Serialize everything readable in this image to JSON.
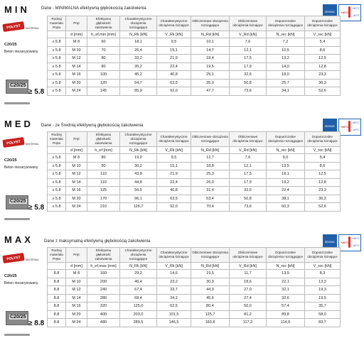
{
  "sections": [
    {
      "id": "min",
      "title": "MIN",
      "desc": "Dane - MINIMALNA efektywną głębokością zakotwienia",
      "badge": {
        "text": "SEISMIC",
        "t1": "+40°C",
        "t2": "+50°C",
        "t3": "-40°C"
      },
      "headers": [
        "Rodzaj materiału Pręta",
        "Pręt",
        "Efektywna głębokość zakotwienia",
        "Charakterystyczne obciążenia rozciągające",
        "Charakterystyczne obciążenia ścinające",
        "Obliczeniowe obciążenia rozciągające",
        "Obliczeniowe obciążenia ścinające",
        "Dopuszczalne obciążenia rozciągające",
        "Dopuszczalne obciążenia ścinające"
      ],
      "units": [
        "",
        "d [mm]",
        "h_ef,min [mm]",
        "N_Rk [kN]",
        "V_Rk [kN]",
        "N_Rd [kN]",
        "V_Rd [kN]",
        "N_rec [kN]",
        "V_rec [kN]"
      ],
      "concrete": "C20/25",
      "concrete_desc": "Beton niezarysowany",
      "grade": "≥ 5.8",
      "rows": [
        [
          "≥ 5.8",
          "M 8",
          "60",
          "18,1",
          "9,5",
          "10,1",
          "7,6",
          "7,2",
          "5,4"
        ],
        [
          "≥ 5.8",
          "M 10",
          "70",
          "26,4",
          "15,1",
          "14,7",
          "12,1",
          "10,5",
          "8,6"
        ],
        [
          "≥ 5.8",
          "M 12",
          "80",
          "33,2",
          "21,9",
          "18,4",
          "17,5",
          "13,2",
          "12,5"
        ],
        [
          "≥ 5.8",
          "M 14",
          "80",
          "35,2",
          "22,4",
          "19,5",
          "17,9",
          "14,0",
          "12,8"
        ],
        [
          "≥ 5.8",
          "M 16",
          "100",
          "45,2",
          "40,8",
          "25,1",
          "32,6",
          "18,0",
          "23,3"
        ],
        [
          "≥ 5.8",
          "M 20",
          "120",
          "64,7",
          "63,5",
          "35,9",
          "50,8",
          "25,7",
          "36,3"
        ],
        [
          "≥ 5.8",
          "M 24",
          "145",
          "85,9",
          "92,0",
          "47,7",
          "73,6",
          "34,1",
          "52,6"
        ]
      ]
    },
    {
      "id": "med",
      "title": "MED",
      "desc": "Dane - ze Średnią efektywną głębokością zakotwienia",
      "badge": {
        "text": "SEISMIC",
        "t1": "+40°C",
        "t2": "+50°C",
        "t3": "-40°C"
      },
      "headers": [
        "Rodzaj materiału Pręta",
        "Pręt",
        "Efektywna głębokość zakotwienia",
        "Charakterystyczne obciążenia rozciągające",
        "Charakterystyczne obciążenia ścinające",
        "Obliczeniowe obciążenia rozciągające",
        "Obliczeniowe obciążenia ścinające",
        "Dopuszczalne obciążenia rozciągające",
        "Dopuszczalne obciążenia ścinające"
      ],
      "units": [
        "",
        "d [mm]",
        "h_ef [mm]",
        "N_Rk [kN]",
        "V_Rk [kN]",
        "N_Rd [kN]",
        "V_Rd [kN]",
        "N_rec [kN]",
        "V_rec [kN]"
      ],
      "concrete": "C20/25",
      "concrete_desc": "Beton niezarysowany",
      "grade": "≥ 5.8",
      "rows": [
        [
          "≥ 5.8",
          "M 8",
          "80",
          "19,0",
          "9,5",
          "12,7",
          "7,6",
          "9,0",
          "5,4"
        ],
        [
          "≥ 5.8",
          "M 10",
          "90",
          "30,2",
          "15,1",
          "18,8",
          "12,1",
          "13,5",
          "8,6"
        ],
        [
          "≥ 5.8",
          "M 12",
          "110",
          "43,8",
          "21,9",
          "25,3",
          "17,5",
          "18,1",
          "12,5"
        ],
        [
          "≥ 5.8",
          "M 14",
          "110",
          "44,8",
          "22,4",
          "26,9",
          "17,9",
          "19,2",
          "12,8"
        ],
        [
          "≥ 5.8",
          "M 16",
          "125",
          "56,5",
          "40,8",
          "31,4",
          "32,6",
          "22,4",
          "23,3"
        ],
        [
          "≥ 5.8",
          "M 20",
          "170",
          "96,1",
          "63,5",
          "53,4",
          "50,8",
          "38,1",
          "36,3"
        ],
        [
          "≥ 5.8",
          "M 24",
          "210",
          "126,7",
          "92,0",
          "70,4",
          "73,6",
          "60,3",
          "52,6"
        ]
      ]
    },
    {
      "id": "max",
      "title": "MAX",
      "desc": "Dane z maksymalną efektywną głębokością zakotwienia",
      "badge": {
        "text": "SEISMIC",
        "t1": "+40°C",
        "t2": "+50°C",
        "t3": "-40°C"
      },
      "headers": [
        "Rodzaj materiału Pręta",
        "Pręt",
        "Efektywna głębokość zakotwienia",
        "Charakterystyczne obciążenia rozciągające",
        "Charakterystyczne obciążenia ścinające",
        "Obliczeniowe obciążenia rozciągające",
        "Obliczeniowe obciążenia ścinające",
        "Dopuszczalne obciążenia rozciągające",
        "Dopuszczalne obciążenia ścinające"
      ],
      "units": [
        "",
        "d [mm]",
        "h_ef,max [mm]",
        "N_Rk [kN]",
        "V_Rk [kN]",
        "N_Rd [kN]",
        "V_Rd [kN]",
        "N_rec [kN]",
        "V_rec [kN]"
      ],
      "concrete": "C20/25",
      "concrete_desc": "Beton niezarysowany",
      "grade": "≥ 8.8",
      "rows": [
        [
          "8.8",
          "M 8",
          "160",
          "29,2",
          "14,6",
          "19,5",
          "11,7",
          "13,9",
          "8,3"
        ],
        [
          "8.8",
          "M 10",
          "200",
          "46,4",
          "23,2",
          "30,9",
          "18,6",
          "22,1",
          "13,3"
        ],
        [
          "8.8",
          "M 12",
          "240",
          "67,4",
          "33,7",
          "44,9",
          "27,0",
          "32,1",
          "19,3"
        ],
        [
          "8.8",
          "M 14",
          "280",
          "68,4",
          "34,2",
          "45,6",
          "27,4",
          "32,6",
          "19,5"
        ],
        [
          "8.8",
          "M 16",
          "320",
          "125,0",
          "62,5",
          "80,4",
          "50,0",
          "57,4",
          "35,7"
        ],
        [
          "8.8",
          "M 20",
          "400",
          "203,0",
          "101,5",
          "125,7",
          "81,2",
          "89,8",
          "58,0"
        ],
        [
          "8.8",
          "M 24",
          "480",
          "289,5",
          "146,5",
          "160,8",
          "117,2",
          "114,9",
          "83,7"
        ]
      ]
    }
  ],
  "logo_text": "POLYST",
  "material_label": "MATERIAŁ"
}
